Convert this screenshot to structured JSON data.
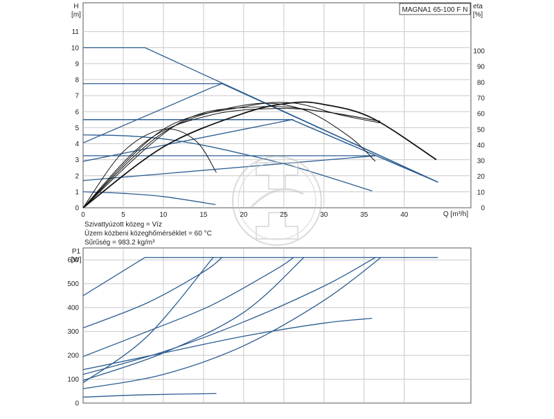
{
  "chart_data": [
    {
      "type": "line",
      "title": "MAGNA1 65-100 F N",
      "ylabel": "H",
      "yunit": "[m]",
      "y2label": "eta",
      "y2unit": "[%]",
      "xlabel": "Q [m³/h]",
      "xlim": [
        0,
        48.3
      ],
      "ylim": [
        0,
        12.8
      ],
      "y2lim": [
        0,
        100
      ],
      "xticks": [
        0,
        5,
        10,
        15,
        20,
        25,
        30,
        35,
        40
      ],
      "yticks": [
        0,
        1,
        2,
        3,
        4,
        5,
        6,
        7,
        8,
        9,
        10,
        11
      ],
      "y2ticks": [
        0,
        10,
        20,
        30,
        40,
        50,
        60,
        70,
        80,
        90,
        100
      ],
      "grid": true,
      "colors": {
        "head": "#2a5c91",
        "eta": "#111111"
      },
      "head_series": [
        {
          "x": [
            0,
            7.7,
            44.2
          ],
          "y": [
            10,
            10,
            1.6
          ]
        },
        {
          "x": [
            0,
            17.3,
            44.2
          ],
          "y": [
            7.75,
            7.75,
            1.6
          ]
        },
        {
          "x": [
            0,
            26,
            44.2
          ],
          "y": [
            5.5,
            5.5,
            1.6
          ]
        },
        {
          "x": [
            0,
            36.5,
            44.2
          ],
          "y": [
            3.25,
            3.25,
            1.6
          ]
        },
        {
          "x": [
            0,
            5,
            10,
            15,
            20,
            25,
            30,
            36
          ],
          "y": [
            4.55,
            4.5,
            4.3,
            3.9,
            3.35,
            2.75,
            2.0,
            1.05
          ]
        },
        {
          "x": [
            0,
            5,
            10,
            16.5
          ],
          "y": [
            1.0,
            0.9,
            0.7,
            0.2
          ]
        },
        {
          "x": [
            0,
            16,
            17.3
          ],
          "y": [
            4.05,
            7.5,
            7.75
          ]
        },
        {
          "x": [
            0,
            26,
            26.2
          ],
          "y": [
            2.9,
            5.5,
            5.5
          ]
        },
        {
          "x": [
            0,
            36.5
          ],
          "y": [
            1.7,
            3.25
          ]
        },
        {
          "x": [
            0,
            26,
            36.5
          ],
          "y": [
            5.5,
            5.5,
            3.25
          ]
        }
      ],
      "eta_series": [
        {
          "x": [
            0,
            5,
            10,
            14,
            16.6
          ],
          "y": [
            0,
            3.5,
            4.9,
            4.2,
            2.2
          ]
        },
        {
          "x": [
            0,
            10,
            20,
            27,
            33,
            36.4
          ],
          "y": [
            0,
            4.7,
            6.4,
            6.2,
            4.5,
            2.9
          ]
        },
        {
          "x": [
            0,
            10,
            20,
            26,
            32,
            37
          ],
          "y": [
            0,
            4.9,
            6.3,
            6.55,
            5.8,
            5.3
          ]
        },
        {
          "x": [
            0,
            10,
            20,
            26,
            30,
            36,
            44
          ],
          "y": [
            0,
            3.8,
            5.9,
            6.55,
            6.45,
            5.6,
            3.0
          ]
        },
        {
          "x": [
            0,
            8,
            16,
            24,
            30,
            37
          ],
          "y": [
            0,
            4.2,
            5.8,
            6.2,
            6.0,
            5.4
          ]
        },
        {
          "x": [
            0,
            12,
            22,
            30,
            37
          ],
          "y": [
            0,
            5.3,
            6.3,
            6.0,
            5.4
          ]
        }
      ]
    },
    {
      "type": "line",
      "ylabel": "P1",
      "yunit": "[W]",
      "xlim": [
        0,
        48.3
      ],
      "ylim": [
        0,
        650
      ],
      "yticks": [
        0,
        100,
        200,
        300,
        400,
        500,
        600
      ],
      "grid": true,
      "colors": {
        "power": "#2a5c91"
      },
      "series": [
        {
          "x": [
            0,
            7.7,
            44.2
          ],
          "y": [
            450,
            610,
            610
          ]
        },
        {
          "x": [
            0,
            8,
            15,
            17.3
          ],
          "y": [
            315,
            420,
            550,
            610
          ]
        },
        {
          "x": [
            0,
            8,
            16,
            24,
            26.2
          ],
          "y": [
            195,
            300,
            410,
            560,
            610
          ]
        },
        {
          "x": [
            0,
            10,
            20,
            30,
            36.4
          ],
          "y": [
            120,
            215,
            340,
            490,
            610
          ]
        },
        {
          "x": [
            0,
            8,
            16.2
          ],
          "y": [
            85,
            280,
            610
          ]
        },
        {
          "x": [
            0,
            10,
            20,
            27.5
          ],
          "y": [
            95,
            210,
            380,
            610
          ]
        },
        {
          "x": [
            0,
            10,
            20,
            30,
            37.1
          ],
          "y": [
            60,
            120,
            240,
            430,
            610
          ]
        },
        {
          "x": [
            0,
            10,
            20,
            30,
            36
          ],
          "y": [
            140,
            210,
            280,
            335,
            355
          ]
        },
        {
          "x": [
            0,
            8,
            16.6
          ],
          "y": [
            25,
            35,
            40
          ]
        }
      ]
    }
  ],
  "info": {
    "medium": "Szivattyúzott közeg = Víz",
    "temperature": "Üzem közbeni közeghőmérséklet = 60 °C",
    "density": "Sűrűség = 983.2 kg/m³"
  }
}
